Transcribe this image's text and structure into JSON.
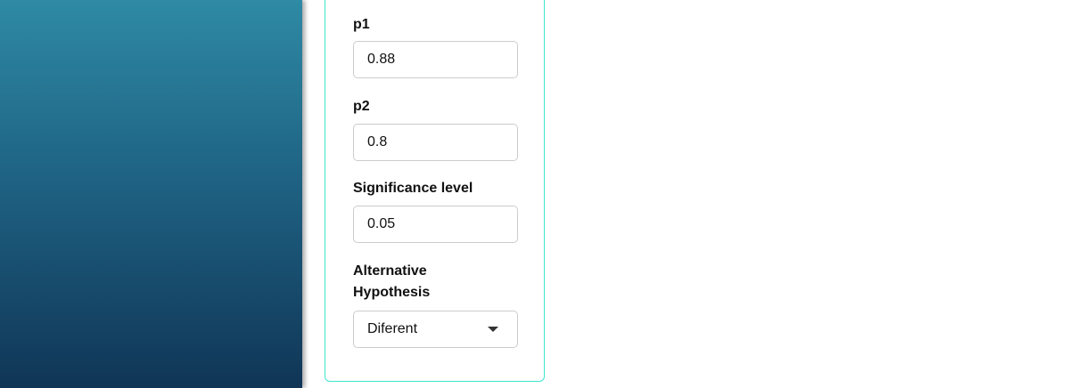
{
  "colors": {
    "sidebar_top": "#2e8aa5",
    "sidebar_bottom": "#103556",
    "card_border": "#3ee6cf"
  },
  "form": {
    "p1": {
      "label": "p1",
      "value": "0.88"
    },
    "p2": {
      "label": "p2",
      "value": "0.8"
    },
    "significance": {
      "label": "Significance level",
      "value": "0.05"
    },
    "alternative": {
      "label_line1": "Alternative",
      "label_line2": "Hypothesis",
      "selected": "Diferent",
      "icon": "caret-down-icon"
    }
  }
}
